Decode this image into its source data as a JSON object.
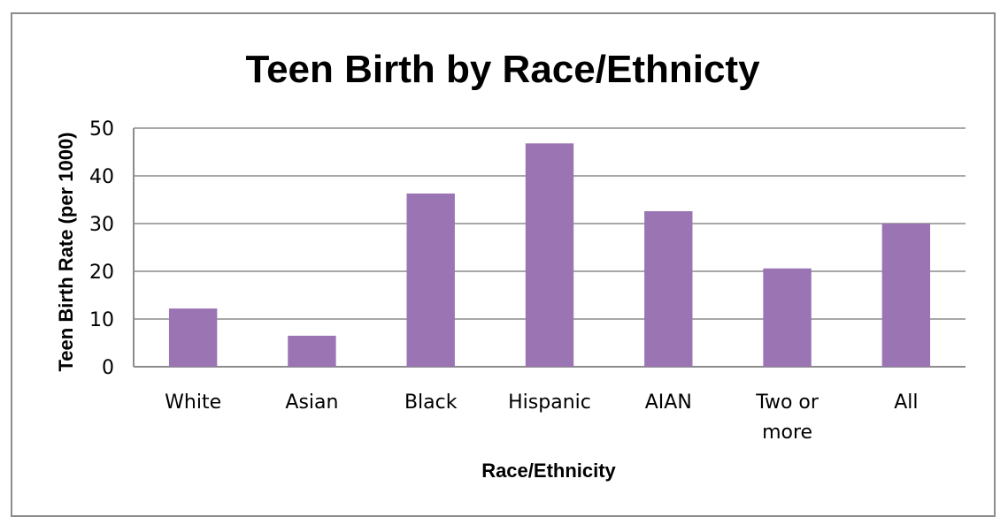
{
  "chart_data": {
    "type": "bar",
    "title": "Teen Birth by Race/Ethnicty",
    "xlabel": "Race/Ethnicity",
    "ylabel": "Teen Birth Rate (per 1000)",
    "categories": [
      [
        "White"
      ],
      [
        "Asian"
      ],
      [
        "Black"
      ],
      [
        "Hispanic"
      ],
      [
        "AIAN"
      ],
      [
        "Two or",
        "more"
      ],
      [
        "All"
      ]
    ],
    "values": [
      12.2,
      6.5,
      36.3,
      46.8,
      32.6,
      20.6,
      30.0
    ],
    "ylim": [
      0,
      50
    ],
    "yticks": [
      "0",
      "10",
      "20",
      "30",
      "40",
      "50"
    ],
    "grid": true,
    "legend": "none",
    "bar_color": "#9b74b4",
    "grid_color": "#8c8c8c"
  }
}
